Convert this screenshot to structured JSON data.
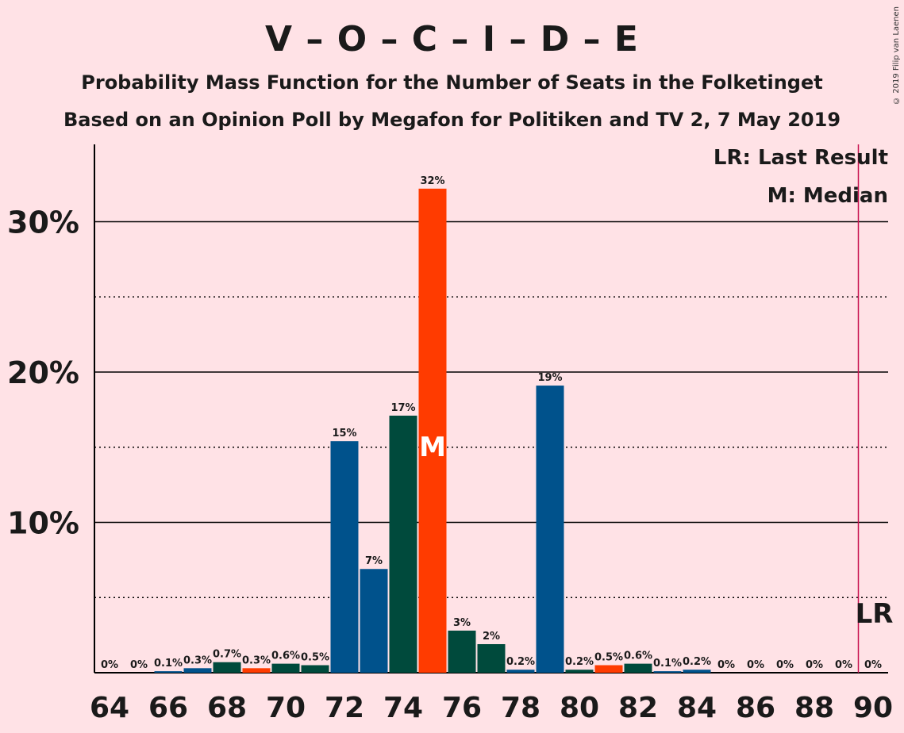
{
  "title": "V – O – C – I – D – E",
  "subtitle": "Probability Mass Function for the Number of Seats in the Folketinget",
  "subtitle2": "Based on an Opinion Poll by Megafon for Politiken and TV 2, 7 May 2019",
  "copyright": "© 2019 Filip van Laenen",
  "legend": {
    "last_result": "LR: Last Result",
    "median": "M: Median"
  },
  "colors": {
    "blue": "#00528c",
    "dark_green": "#004a3c",
    "red": "#ff3b00",
    "lr_line": "#c8104e",
    "background": "#ffe2e6"
  },
  "chart_data": {
    "type": "bar",
    "x": [
      64,
      65,
      66,
      67,
      68,
      69,
      70,
      71,
      72,
      73,
      74,
      75,
      76,
      77,
      78,
      79,
      80,
      81,
      82,
      83,
      84,
      85,
      86,
      87,
      88,
      89,
      90
    ],
    "values": [
      0,
      0,
      0.1,
      0.3,
      0.7,
      0.3,
      0.6,
      0.5,
      15.4,
      6.9,
      17.1,
      32.2,
      2.8,
      1.9,
      0.2,
      19.1,
      0.2,
      0.5,
      0.6,
      0.1,
      0.2,
      0,
      0,
      0,
      0,
      0,
      0
    ],
    "labels": [
      "0%",
      "0%",
      "0.1%",
      "0.3%",
      "0.7%",
      "0.3%",
      "0.6%",
      "0.5%",
      "15%",
      "7%",
      "17%",
      "32%",
      "3%",
      "2%",
      "0.2%",
      "19%",
      "0.2%",
      "0.5%",
      "0.6%",
      "0.1%",
      "0.2%",
      "0%",
      "0%",
      "0%",
      "0%",
      "0%",
      "0%"
    ],
    "colors": [
      "blue",
      "blue",
      "blue",
      "blue",
      "dark_green",
      "red",
      "dark_green",
      "dark_green",
      "blue",
      "blue",
      "dark_green",
      "red",
      "dark_green",
      "dark_green",
      "blue",
      "blue",
      "dark_green",
      "red",
      "dark_green",
      "blue",
      "blue",
      "blue",
      "blue",
      "blue",
      "blue",
      "blue",
      "blue"
    ],
    "x_ticks": [
      64,
      66,
      68,
      70,
      72,
      74,
      76,
      78,
      80,
      82,
      84,
      86,
      88,
      90
    ],
    "y_ticks": [
      10,
      20,
      30
    ],
    "y_tick_labels": [
      "10%",
      "20%",
      "30%"
    ],
    "ylim": [
      0,
      35
    ],
    "median": 75,
    "median_label": "M",
    "last_result": 89.5,
    "last_result_label": "LR"
  }
}
